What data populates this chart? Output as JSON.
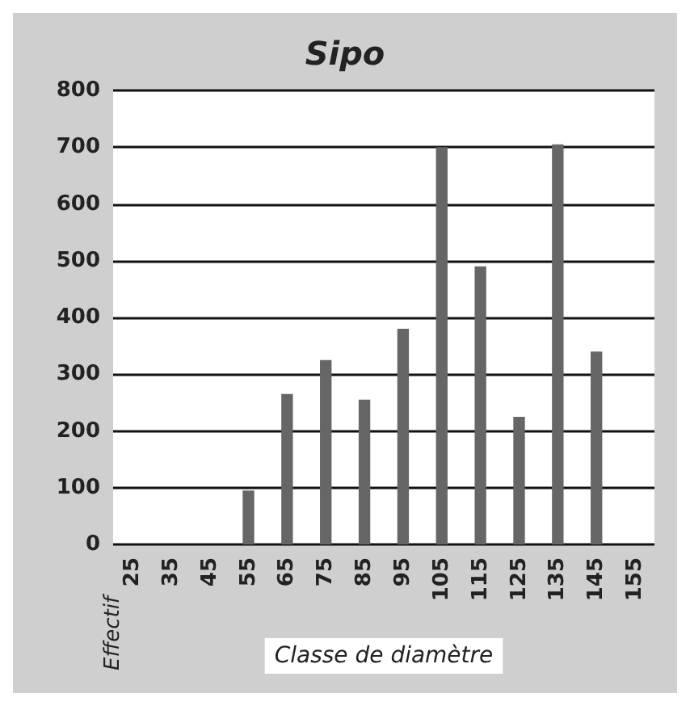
{
  "chart_data": {
    "type": "bar",
    "title": "Sipo",
    "xlabel": "Classe de diamètre",
    "ylabel": "Effectif",
    "categories": [
      "25",
      "35",
      "45",
      "55",
      "65",
      "75",
      "85",
      "95",
      "105",
      "115",
      "125",
      "135",
      "145",
      "155"
    ],
    "values": [
      0,
      0,
      0,
      95,
      265,
      325,
      255,
      380,
      700,
      490,
      225,
      705,
      340,
      0
    ],
    "color": "#666666",
    "ylim": [
      0,
      800
    ],
    "yticks": [
      0,
      100,
      200,
      300,
      400,
      500,
      600,
      700,
      800
    ],
    "grid": "y"
  }
}
